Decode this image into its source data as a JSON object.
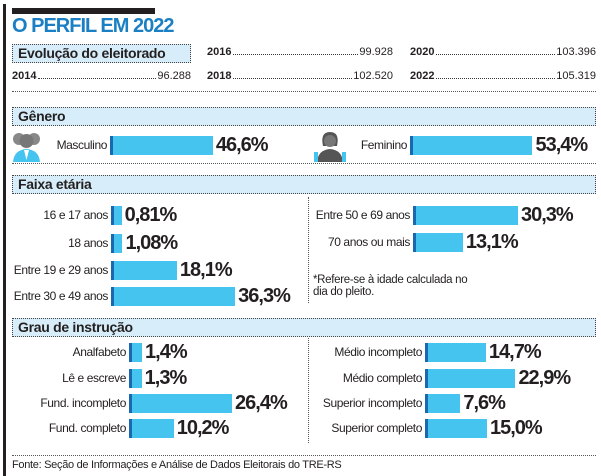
{
  "title": "O PERFIL EM 2022",
  "electorate": {
    "heading": "Evolução do eleitorado",
    "years": [
      {
        "year": "2014",
        "value": "96.288"
      },
      {
        "year": "2016",
        "value": "99.928"
      },
      {
        "year": "2018",
        "value": "102.520"
      },
      {
        "year": "2020",
        "value": "103.396"
      },
      {
        "year": "2022",
        "value": "105.319"
      }
    ]
  },
  "colors": {
    "title": "#1b7fc4",
    "bar": "#45c4f0",
    "bar_edge": "#1869b0",
    "header_bg": "#d7eefa"
  },
  "chart_data": [
    {
      "type": "bar",
      "title": "Gênero",
      "categories": [
        "Masculino",
        "Feminino"
      ],
      "values": [
        46.6,
        53.4
      ],
      "labels": [
        "46,6%",
        "53,4%"
      ]
    },
    {
      "type": "bar",
      "title": "Faixa etária",
      "categories": [
        "16 e 17 anos",
        "18 anos",
        "Entre 19 e 29 anos",
        "Entre 30 e 49 anos",
        "Entre 50 e 69 anos",
        "70 anos ou mais"
      ],
      "values": [
        0.81,
        1.08,
        18.1,
        36.3,
        30.3,
        13.1
      ],
      "labels": [
        "0,81%",
        "1,08%",
        "18,1%",
        "36,3%",
        "30,3%",
        "13,1%"
      ],
      "note": "*Refere-se à idade calculada no dia do pleito."
    },
    {
      "type": "bar",
      "title": "Grau de instrução",
      "categories": [
        "Analfabeto",
        "Lê e escreve",
        "Fund. incompleto",
        "Fund. completo",
        "Médio incompleto",
        "Médio completo",
        "Superior incompleto",
        "Superior completo"
      ],
      "values": [
        1.4,
        1.3,
        26.4,
        10.2,
        14.7,
        22.9,
        7.6,
        15.0
      ],
      "labels": [
        "1,4%",
        "1,3%",
        "26,4%",
        "10,2%",
        "14,7%",
        "22,9%",
        "7,6%",
        "15,0%"
      ]
    }
  ],
  "source": "Fonte: Seção de Informações e Análise de Dados Eleitorais do TRE-RS"
}
